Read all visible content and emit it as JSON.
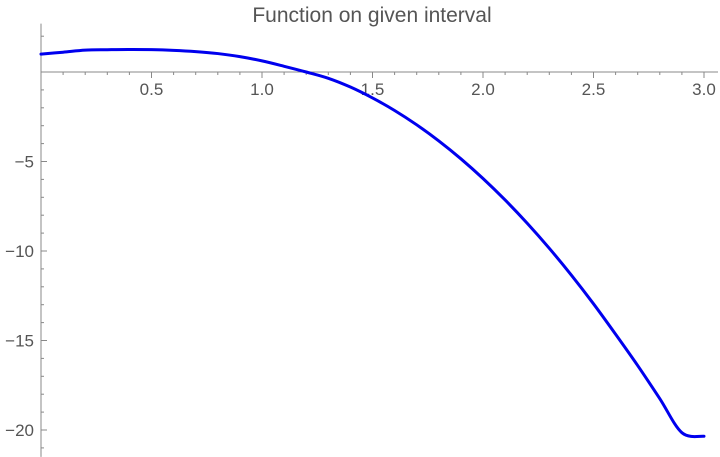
{
  "chart_data": {
    "type": "line",
    "title": "Function on given interval",
    "xlabel": "",
    "ylabel": "",
    "xlim": [
      0.0,
      3.0
    ],
    "ylim": [
      -21.5,
      2.7
    ],
    "x_ticks": [
      0.5,
      1.0,
      1.5,
      2.0,
      2.5,
      3.0
    ],
    "x_tick_labels": [
      "0.5",
      "1.0",
      "1.5",
      "2.0",
      "2.5",
      "3.0"
    ],
    "y_ticks": [
      -5,
      -10,
      -15,
      -20
    ],
    "y_tick_labels": [
      "−5",
      "−10",
      "−15",
      "−20"
    ],
    "grid": false,
    "series": [
      {
        "color": "#0000ee",
        "x": [
          0.0,
          0.1,
          0.2,
          0.3,
          0.4,
          0.5,
          0.6,
          0.7,
          0.8,
          0.9,
          1.0,
          1.1,
          1.2,
          1.3,
          1.4,
          1.5,
          1.6,
          1.7,
          1.8,
          1.9,
          2.0,
          2.1,
          2.2,
          2.3,
          2.4,
          2.5,
          2.6,
          2.7,
          2.8,
          2.9,
          3.0
        ],
        "y": [
          1.0,
          1.105,
          1.22,
          1.245,
          1.26,
          1.25,
          1.21,
          1.14,
          1.03,
          0.86,
          0.62,
          0.32,
          0.0,
          -0.35,
          -0.84,
          -1.45,
          -2.15,
          -2.95,
          -3.85,
          -4.85,
          -5.95,
          -7.15,
          -8.45,
          -9.85,
          -11.35,
          -12.95,
          -14.65,
          -16.4,
          -18.25,
          -20.15,
          -20.35
        ]
      }
    ]
  }
}
